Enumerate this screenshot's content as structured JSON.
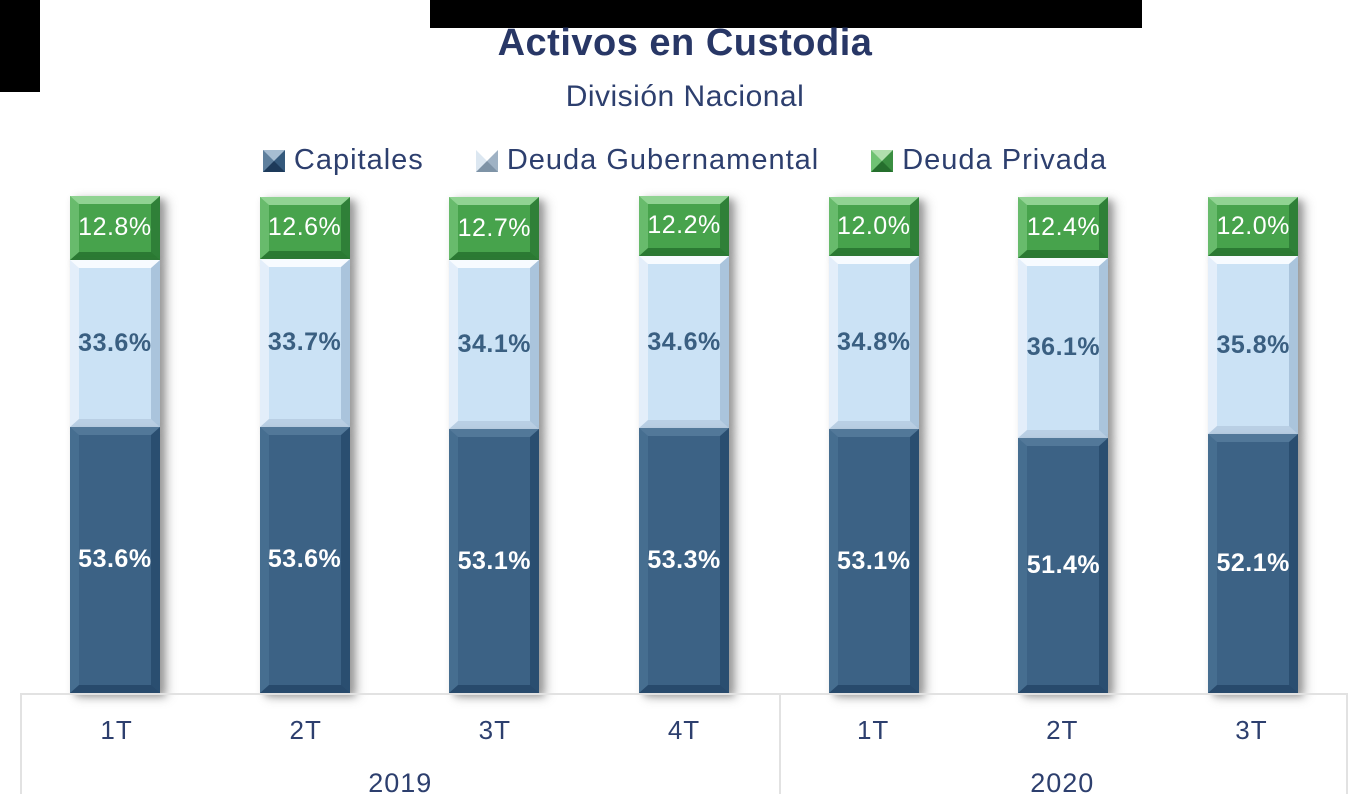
{
  "title": "Activos en Custodia",
  "subtitle": "División Nacional",
  "legend": {
    "items": [
      {
        "label": "Capitales",
        "key": "capitales"
      },
      {
        "label": "Deuda Gubernamental",
        "key": "deuda_gubernamental"
      },
      {
        "label": "Deuda Privada",
        "key": "deuda_privada"
      }
    ]
  },
  "colors": {
    "capitales": "#3c6285",
    "deuda_gubernamental": "#cbe2f5",
    "deuda_privada": "#47a34c",
    "title_text": "#283766",
    "body_text": "#2d3f6e",
    "light_segment_label_text": "#3a5f81",
    "axis_line": "#e2e2e2"
  },
  "chart_data": {
    "type": "bar",
    "stacked": true,
    "percent_of_total": true,
    "title": "Activos en Custodia",
    "subtitle": "División Nacional",
    "unit": "%",
    "ylim": [
      0,
      100
    ],
    "legend_position": "top",
    "grid": false,
    "categories": [
      "1T",
      "2T",
      "3T",
      "4T",
      "1T",
      "2T",
      "3T"
    ],
    "category_groups": [
      {
        "label": "2019",
        "span": 4
      },
      {
        "label": "2020",
        "span": 3
      }
    ],
    "series": [
      {
        "name": "Capitales",
        "key": "capitales",
        "values": [
          53.6,
          53.6,
          53.1,
          53.3,
          53.1,
          51.4,
          52.1
        ]
      },
      {
        "name": "Deuda Gubernamental",
        "key": "deuda_gubernamental",
        "values": [
          33.6,
          33.7,
          34.1,
          34.6,
          34.8,
          36.1,
          35.8
        ]
      },
      {
        "name": "Deuda Privada",
        "key": "deuda_privada",
        "values": [
          12.8,
          12.6,
          12.7,
          12.2,
          12.0,
          12.4,
          12.0
        ]
      }
    ]
  }
}
